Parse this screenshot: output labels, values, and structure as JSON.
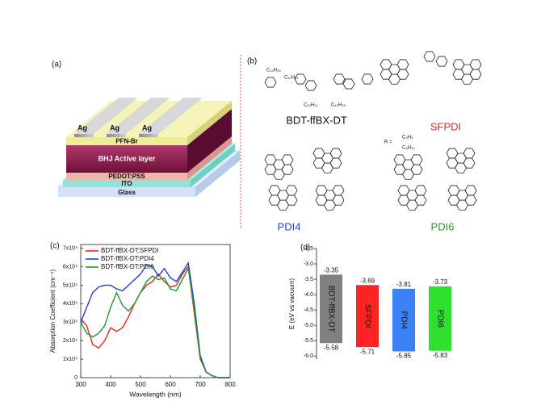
{
  "device": {
    "label": "(a)",
    "ag": [
      "Ag",
      "Ag",
      "Ag"
    ],
    "top_layer": "PFN-Br",
    "active_layer": "BHJ Active layer",
    "htl": "PEDOT:PSS",
    "electrode": "ITO",
    "substrate": "Glass"
  },
  "structures": {
    "label": "(b)",
    "molecules": [
      "BDT-ffBX-DT",
      "SFPDI",
      "PDI4",
      "PDI6"
    ],
    "r_group": "R =",
    "side_chains": [
      "C₁₂H₂₅",
      "C₁₀H₂₁",
      "C₁₀H₂₁",
      "C₁₂H₂₅",
      "C₄H₉",
      "C₆H₁₃"
    ]
  },
  "chart_data": [
    {
      "type": "line",
      "panel": "(c)",
      "xlabel": "Wavelength (nm)",
      "ylabel": "Absorption Coefficient (cm⁻¹)",
      "x": [
        300,
        320,
        340,
        360,
        380,
        400,
        420,
        440,
        460,
        480,
        500,
        520,
        540,
        560,
        580,
        600,
        620,
        640,
        660,
        680,
        700,
        720,
        740,
        760,
        780,
        800
      ],
      "xlim": [
        300,
        800
      ],
      "xticks": [
        300,
        400,
        500,
        600,
        700,
        800
      ],
      "ylim": [
        0,
        72000
      ],
      "yticks": [
        0,
        {
          "value": 10000,
          "label": "1x10⁴"
        },
        {
          "value": 20000,
          "label": "2x10⁴"
        },
        {
          "value": 30000,
          "label": "3x10⁴"
        },
        {
          "value": 40000,
          "label": "4x10⁴"
        },
        {
          "value": 50000,
          "label": "5x10⁴"
        },
        {
          "value": 60000,
          "label": "6x10⁴"
        },
        {
          "value": 70000,
          "label": "7x10⁴"
        }
      ],
      "legend": "upper left",
      "series": [
        {
          "name": "BDT-ffBX-DT:SFPDI",
          "color": "#e8261c",
          "values": [
            32000,
            28000,
            18000,
            16000,
            20000,
            27000,
            25000,
            27000,
            33000,
            40000,
            46000,
            50000,
            52000,
            56000,
            52000,
            49000,
            50000,
            56000,
            60000,
            35000,
            10000,
            3000,
            1000,
            0,
            0,
            0
          ]
        },
        {
          "name": "BDT-ffBX-DT:PDI4",
          "color": "#1f3fe0",
          "values": [
            30000,
            38000,
            46000,
            49000,
            50000,
            50000,
            48000,
            47000,
            50000,
            53000,
            56000,
            61000,
            60000,
            55000,
            59000,
            54000,
            52000,
            57000,
            62000,
            40000,
            12000,
            3000,
            1000,
            0,
            0,
            0
          ]
        },
        {
          "name": "BDT-ffBX-DT:PDI6",
          "color": "#1f9a2a",
          "values": [
            30000,
            24000,
            22000,
            24000,
            28000,
            38000,
            46000,
            39000,
            36000,
            40000,
            46000,
            52000,
            55000,
            53000,
            54000,
            48000,
            47000,
            53000,
            59000,
            37000,
            11000,
            3000,
            1000,
            0,
            0,
            0
          ]
        }
      ]
    },
    {
      "type": "floating_bar",
      "panel": "(d)",
      "ylabel": "E (eV vs vacuum)",
      "categories": [
        "BDT-ffBX-DT",
        "SFPDI",
        "PDI4",
        "PDI6"
      ],
      "colors": [
        "#808080",
        "#ff2424",
        "#3d82f5",
        "#2fe02f"
      ],
      "lumo": [
        -3.35,
        -3.69,
        -3.81,
        -3.73
      ],
      "homo": [
        -5.58,
        -5.71,
        -5.85,
        -5.83
      ],
      "ylim": [
        -6.1,
        -2.5
      ],
      "yticks": [
        {
          "value": -2.5,
          "label": "-2.5"
        },
        {
          "value": -3,
          "label": "-3.0"
        },
        {
          "value": -3.5,
          "label": "-3.5"
        },
        {
          "value": -4,
          "label": "-4.0"
        },
        {
          "value": -4.5,
          "label": "-4.5"
        },
        {
          "value": -5,
          "label": "-5.0"
        },
        {
          "value": -5.5,
          "label": "-5.5"
        },
        {
          "value": -6,
          "label": "-6.0"
        }
      ]
    }
  ]
}
